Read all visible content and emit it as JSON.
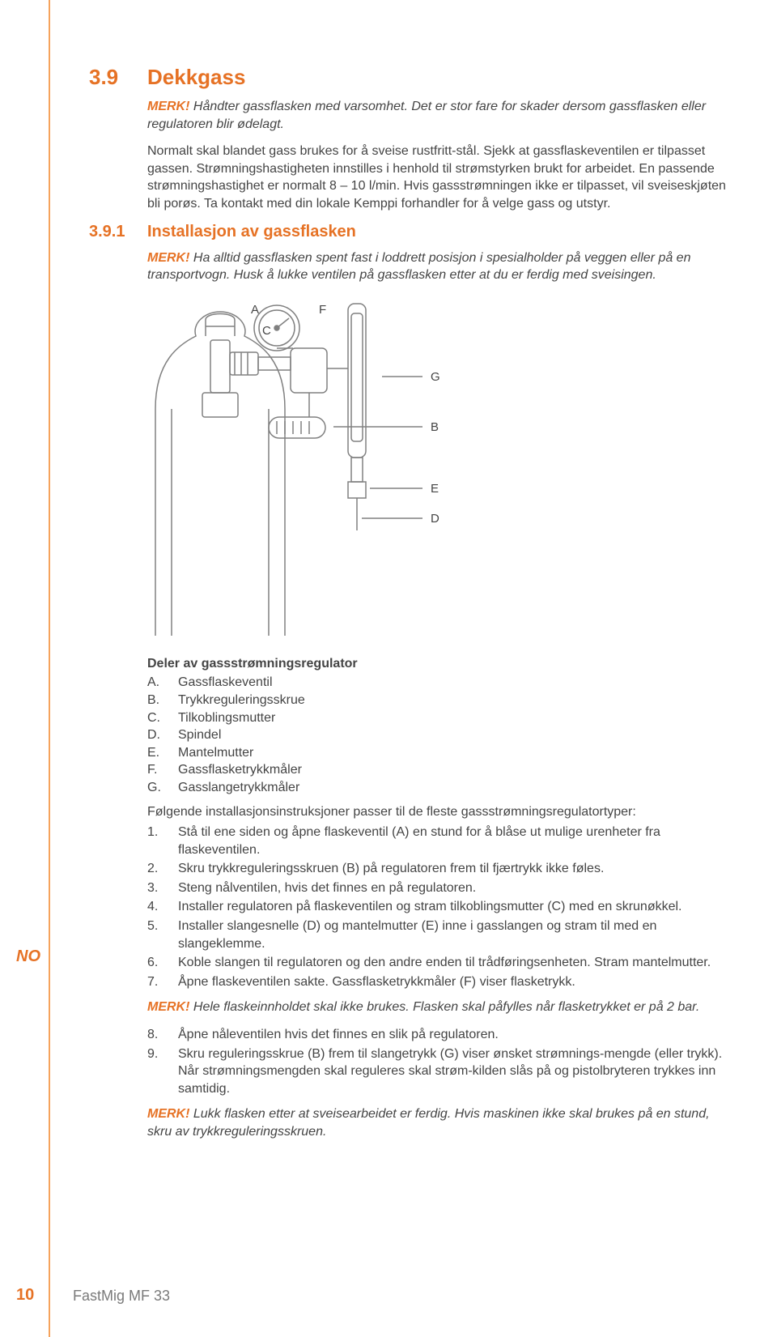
{
  "page": {
    "lang_code": "NO",
    "page_number": "10",
    "footer": "FastMig MF 33"
  },
  "colors": {
    "accent": "#e67225",
    "text": "#444444",
    "rule": "#f5a35c",
    "figure_line": "#808080"
  },
  "section": {
    "number": "3.9",
    "title": "Dekkgass",
    "note1_label": "MERK!",
    "note1_text": " Håndter gassflasken med varsomhet. Det er stor fare for skader dersom gassflasken eller regulatoren blir ødelagt.",
    "paragraph": "Normalt skal blandet gass brukes for å sveise rustfritt-stål. Sjekk at gassflaskeventilen er tilpasset gassen. Strømningshastigheten innstilles i henhold til strømstyrken brukt for arbeidet. En passende strømningshastighet er normalt 8 – 10 l/min. Hvis gassstrømningen ikke er tilpasset, vil sveiseskjøten bli porøs. Ta kontakt med din lokale Kemppi forhandler for å velge gass og utstyr."
  },
  "subsection": {
    "number": "3.9.1",
    "title": "Installasjon av gassflasken",
    "note_label": "MERK!",
    "note_text": " Ha alltid gassflasken spent fast i loddrett posisjon i spesialholder på veggen eller på en transportvogn. Husk å lukke ventilen på gassflasken etter at du er ferdig med sveisingen."
  },
  "figure": {
    "labels": {
      "A": "A",
      "C": "C",
      "F": "F",
      "G": "G",
      "B": "B",
      "E": "E",
      "D": "D"
    }
  },
  "parts": {
    "title": "Deler av gassstrømningsregulator",
    "items": [
      {
        "key": "A.",
        "label": "Gassflaskeventil"
      },
      {
        "key": "B.",
        "label": "Trykkreguleringsskrue"
      },
      {
        "key": "C.",
        "label": "Tilkoblingsmutter"
      },
      {
        "key": "D.",
        "label": "Spindel"
      },
      {
        "key": "E.",
        "label": "Mantelmutter"
      },
      {
        "key": "F.",
        "label": "Gassflasketrykkmåler"
      },
      {
        "key": "G.",
        "label": "Gasslangetrykkmåler"
      }
    ]
  },
  "instructions": {
    "lead": "Følgende installasjonsinstruksjoner passer til de fleste gassstrømningsregulatortyper:",
    "steps1": [
      {
        "n": "1.",
        "t": "Stå til ene siden og åpne flaskeventil (A) en stund for å blåse ut mulige urenheter fra flaskeventilen."
      },
      {
        "n": "2.",
        "t": "Skru trykkreguleringsskruen (B) på regulatoren frem til fjærtrykk ikke føles."
      },
      {
        "n": "3.",
        "t": "Steng nålventilen, hvis det finnes en på regulatoren."
      },
      {
        "n": "4.",
        "t": "Installer regulatoren på flaskeventilen og stram tilkoblingsmutter (C) med en skrunøkkel."
      },
      {
        "n": "5.",
        "t": "Installer slangesnelle (D) og mantelmutter (E) inne i gasslangen og stram til med en slangeklemme."
      },
      {
        "n": "6.",
        "t": "Koble slangen til regulatoren og den andre enden til trådføringsenheten. Stram mantelmutter."
      },
      {
        "n": "7.",
        "t": "Åpne flaskeventilen sakte. Gassflasketrykkmåler (F) viser flasketrykk."
      }
    ],
    "note2_label": "MERK!",
    "note2_text": " Hele flaskeinnholdet skal ikke brukes. Flasken skal påfylles når flasketrykket er på 2 bar.",
    "steps2": [
      {
        "n": "8.",
        "t": "Åpne nåleventilen hvis det finnes en slik på regulatoren."
      },
      {
        "n": "9.",
        "t": "Skru reguleringsskrue (B) frem til slangetrykk (G) viser ønsket strømnings-mengde (eller trykk). Når strømningsmengden skal reguleres skal strøm-kilden slås på og pistolbryteren trykkes inn samtidig."
      }
    ],
    "note3_label": "MERK!",
    "note3_text": " Lukk flasken etter at sveisearbeidet er ferdig. Hvis maskinen ikke skal brukes på en stund, skru av trykkreguleringsskruen."
  }
}
